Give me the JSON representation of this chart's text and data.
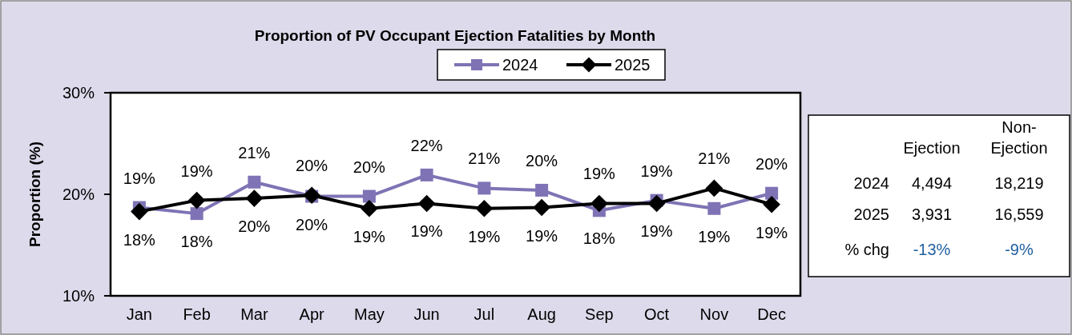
{
  "chart_data": [
    {
      "type": "line",
      "title": "Proportion of PV Occupant Ejection Fatalities by Month",
      "ylabel": "Proportion (%)",
      "categories": [
        "Jan",
        "Feb",
        "Mar",
        "Apr",
        "May",
        "Jun",
        "Jul",
        "Aug",
        "Sep",
        "Oct",
        "Nov",
        "Dec"
      ],
      "series": [
        {
          "name": "2024",
          "color": "#7f73b5",
          "marker": "square",
          "values": [
            18.7,
            18.1,
            21.2,
            19.8,
            19.8,
            21.9,
            20.6,
            20.4,
            18.4,
            19.4,
            18.6,
            20.1
          ],
          "value_labels": [
            "19%",
            "18%",
            "21%",
            "20%",
            "20%",
            "22%",
            "21%",
            "20%",
            "18%",
            "19%",
            "19%",
            "20%"
          ]
        },
        {
          "name": "2025",
          "color": "#000000",
          "marker": "diamond",
          "values": [
            18.3,
            19.4,
            19.6,
            19.9,
            18.6,
            19.1,
            18.6,
            18.7,
            19.1,
            19.1,
            20.6,
            19.0
          ],
          "value_labels": [
            "18%",
            "19%",
            "20%",
            "20%",
            "19%",
            "19%",
            "19%",
            "19%",
            "19%",
            "19%",
            "21%",
            "19%"
          ]
        }
      ],
      "ylim": [
        10,
        30
      ],
      "yticks": [
        {
          "value": 10,
          "label": "10%"
        },
        {
          "value": 20,
          "label": "20%"
        },
        {
          "value": 30,
          "label": "30%"
        }
      ],
      "grid": false,
      "legend": "top"
    },
    {
      "type": "other",
      "categories": [
        "Ejection",
        "Non-Ejection"
      ],
      "y_categories": [
        "2024",
        "2025",
        "% chg"
      ],
      "cell_labels": [
        [
          "4,494",
          "18,219"
        ],
        [
          "3,931",
          "16,559"
        ],
        [
          "-13%",
          "-9%"
        ]
      ],
      "colors": [
        "#000000",
        "#000000",
        "#1f5f9f"
      ]
    }
  ]
}
